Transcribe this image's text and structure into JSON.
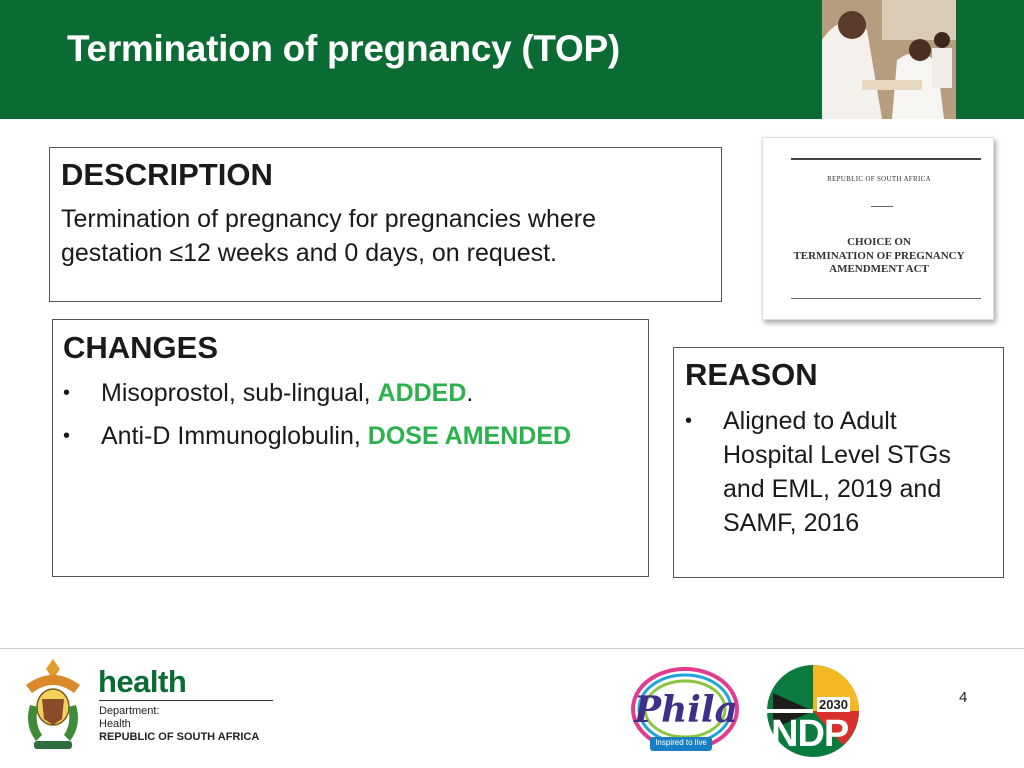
{
  "header": {
    "title": "Termination of pregnancy (TOP)"
  },
  "description": {
    "heading": "DESCRIPTION",
    "line1": "Termination of pregnancy for pregnancies where",
    "line2": "gestation ≤12 weeks and 0 days, on request."
  },
  "act_document": {
    "republic": "REPUBLIC OF SOUTH AFRICA",
    "title_line1": "CHOICE ON",
    "title_line2": "TERMINATION OF PREGNANCY",
    "title_line3": "AMENDMENT ACT"
  },
  "changes": {
    "heading": "CHANGES",
    "items": [
      {
        "text": "Misoprostol, sub-lingual, ",
        "highlight": "ADDED",
        "suffix": "."
      },
      {
        "text": "Anti-D Immunoglobulin, ",
        "highlight": "DOSE AMENDED",
        "suffix": ""
      }
    ]
  },
  "reason": {
    "heading": "REASON",
    "lines": [
      "Aligned to Adult",
      "Hospital Level STGs",
      "and EML, 2019 and",
      "SAMF, 2016"
    ]
  },
  "footer": {
    "health_word": "health",
    "dept_line1": "Department:",
    "dept_line2": "Health",
    "dept_line3": "REPUBLIC OF SOUTH AFRICA",
    "phila_logo": "Phila",
    "phila_tagline": "Inspired to live",
    "ndp_logo": "NDP",
    "ndp_year": "2030",
    "page_number": "4"
  },
  "colors": {
    "header_green": "#0a6b33",
    "highlight_green": "#2bb24c"
  }
}
